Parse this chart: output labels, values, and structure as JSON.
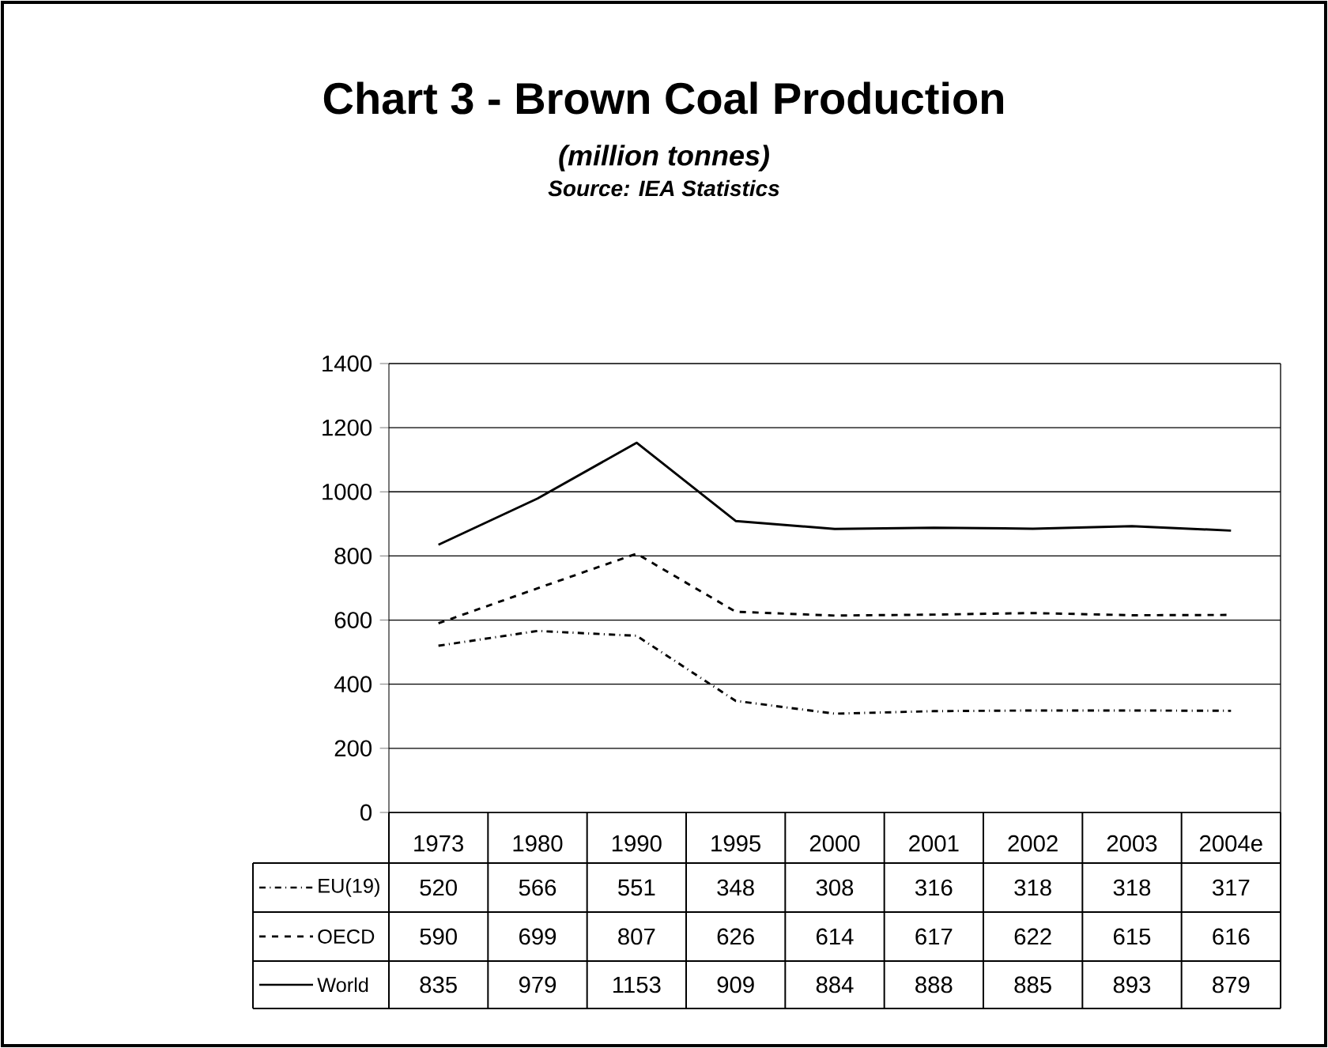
{
  "chart_data": {
    "type": "line",
    "title": "Chart 3 - Brown Coal Production",
    "subtitle": "(million tonnes)",
    "annotations": [
      "Source: IEA Statistics"
    ],
    "categories": [
      "1973",
      "1980",
      "1990",
      "1995",
      "2000",
      "2001",
      "2002",
      "2003",
      "2004e"
    ],
    "series": [
      {
        "name": "EU(19)",
        "color": "#000000",
        "line_style": "dashdot",
        "values": [
          520,
          566,
          551,
          348,
          308,
          316,
          318,
          318,
          317
        ]
      },
      {
        "name": "OECD",
        "color": "#000000",
        "line_style": "dashed",
        "values": [
          590,
          699,
          807,
          626,
          614,
          617,
          622,
          615,
          616
        ]
      },
      {
        "name": "World",
        "color": "#000000",
        "line_style": "solid",
        "values": [
          835,
          979,
          1153,
          909,
          884,
          888,
          885,
          893,
          879
        ]
      }
    ],
    "ylim": [
      0,
      1400
    ],
    "yticks": [
      0,
      200,
      400,
      600,
      800,
      1000,
      1200,
      1400
    ],
    "grid": "y",
    "legend": "bottom left",
    "data_labels": true,
    "marker": "none"
  }
}
